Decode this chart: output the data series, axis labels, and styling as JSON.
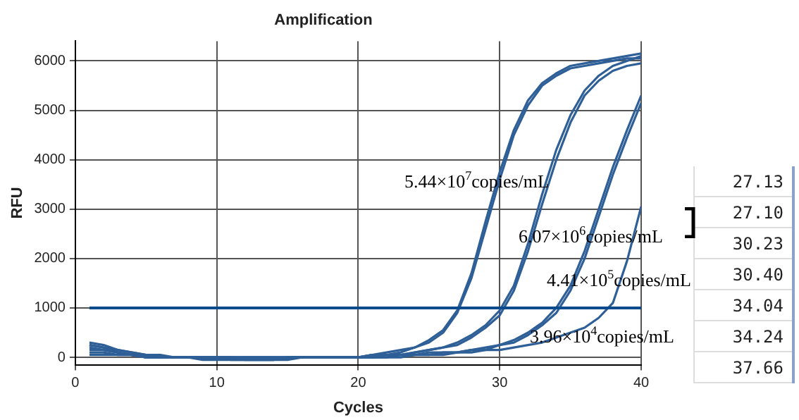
{
  "chart_data": {
    "type": "line",
    "title": "Amplification",
    "xlabel": "Cycles",
    "ylabel": "RFU",
    "x": [
      1,
      2,
      3,
      4,
      5,
      6,
      7,
      8,
      9,
      10,
      11,
      12,
      13,
      14,
      15,
      16,
      17,
      18,
      19,
      20,
      21,
      22,
      23,
      24,
      25,
      26,
      27,
      28,
      29,
      30,
      31,
      32,
      33,
      34,
      35,
      36,
      37,
      38,
      39,
      40
    ],
    "series": [
      {
        "color": "#2f5f97",
        "values": [
          200,
          150,
          100,
          50,
          50,
          0,
          0,
          0,
          0,
          0,
          0,
          0,
          0,
          0,
          0,
          0,
          0,
          0,
          0,
          0,
          50,
          50,
          100,
          200,
          300,
          500,
          900,
          1600,
          2600,
          3600,
          4500,
          5100,
          5500,
          5700,
          5850,
          5900,
          5950,
          6000,
          6050,
          6050
        ]
      },
      {
        "color": "#2f5f97",
        "values": [
          300,
          250,
          150,
          100,
          50,
          50,
          0,
          0,
          0,
          0,
          0,
          -50,
          -50,
          -50,
          0,
          0,
          0,
          0,
          0,
          0,
          50,
          100,
          150,
          200,
          350,
          550,
          950,
          1700,
          2750,
          3750,
          4600,
          5200,
          5550,
          5750,
          5900,
          5950,
          6000,
          6050,
          6100,
          6150
        ]
      },
      {
        "color": "#2f5f97",
        "values": [
          100,
          100,
          50,
          50,
          0,
          0,
          0,
          0,
          0,
          0,
          0,
          0,
          0,
          0,
          0,
          0,
          0,
          0,
          0,
          0,
          0,
          50,
          50,
          100,
          150,
          200,
          300,
          450,
          650,
          950,
          1450,
          2300,
          3300,
          4200,
          4900,
          5400,
          5700,
          5900,
          6000,
          6100
        ]
      },
      {
        "color": "#2f5f97",
        "values": [
          250,
          200,
          100,
          50,
          50,
          0,
          0,
          0,
          0,
          0,
          -50,
          -50,
          -50,
          -50,
          0,
          0,
          0,
          0,
          0,
          0,
          50,
          50,
          50,
          100,
          150,
          200,
          250,
          400,
          600,
          850,
          1350,
          2150,
          3100,
          4000,
          4750,
          5300,
          5600,
          5800,
          5900,
          5950
        ]
      },
      {
        "color": "#2f5f97",
        "values": [
          150,
          150,
          100,
          50,
          0,
          0,
          0,
          0,
          0,
          0,
          0,
          0,
          0,
          0,
          0,
          0,
          0,
          0,
          0,
          0,
          0,
          50,
          50,
          50,
          100,
          100,
          100,
          150,
          200,
          250,
          350,
          500,
          700,
          1000,
          1450,
          2150,
          3000,
          3850,
          4600,
          5300
        ]
      },
      {
        "color": "#2f5f97",
        "values": [
          250,
          200,
          150,
          100,
          50,
          0,
          0,
          0,
          0,
          0,
          0,
          0,
          0,
          0,
          0,
          0,
          0,
          0,
          0,
          0,
          0,
          0,
          50,
          50,
          50,
          100,
          100,
          150,
          150,
          250,
          300,
          450,
          650,
          900,
          1350,
          2000,
          2850,
          3700,
          4450,
          5150
        ]
      },
      {
        "color": "#2f5f97",
        "values": [
          50,
          50,
          50,
          50,
          0,
          0,
          0,
          0,
          -50,
          -50,
          -50,
          -50,
          -50,
          -50,
          -50,
          0,
          0,
          0,
          0,
          0,
          0,
          0,
          0,
          50,
          50,
          50,
          100,
          100,
          150,
          150,
          200,
          250,
          300,
          400,
          500,
          600,
          800,
          1100,
          1950,
          3050
        ]
      }
    ],
    "xlim": [
      0,
      40
    ],
    "xticks": [
      0,
      10,
      20,
      30,
      40
    ],
    "ylim": [
      -150,
      6400
    ],
    "yticks": [
      0,
      1000,
      2000,
      3000,
      4000,
      5000,
      6000
    ],
    "grid": true,
    "legend": false,
    "marker": "none",
    "line_style": "solid",
    "ref_lines": [
      {
        "axis": "y",
        "value": 1000,
        "color": "#0b4a8c"
      }
    ],
    "annotations": [
      "5.44×10$^{7}$copies/mL",
      "6.07×10$^{6}$copies/mL",
      "4.41×10$^{5}$copies/mL",
      "3.96×10$^{4}$copies/mL",
      "27.13",
      "27.10",
      "30.23",
      "30.40",
      "34.04",
      "34.24",
      "37.66"
    ]
  }
}
